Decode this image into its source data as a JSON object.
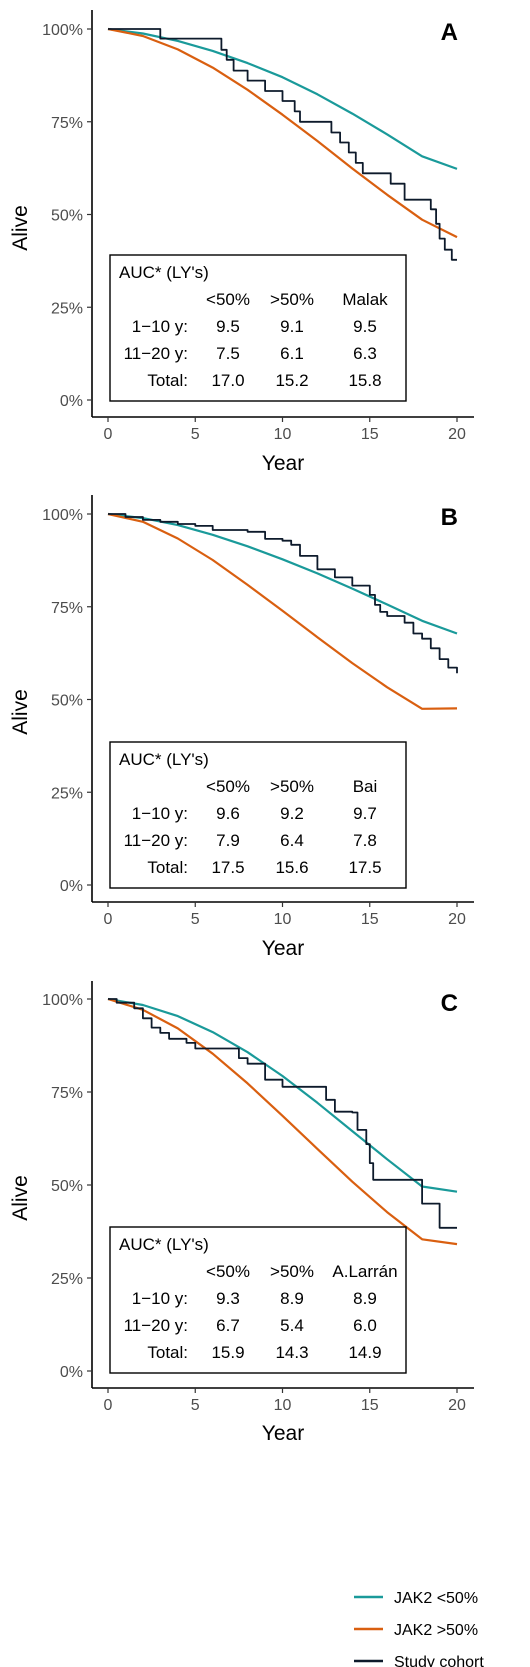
{
  "chart_data": [
    {
      "type": "line",
      "panel": "A",
      "xlabel": "Year",
      "ylabel": "Alive",
      "xlim": [
        0,
        20
      ],
      "ylim": [
        0,
        100
      ],
      "x_ticks": [
        "0",
        "5",
        "10",
        "15",
        "20"
      ],
      "y_ticks": [
        "0%",
        "25%",
        "50%",
        "75%",
        "100%"
      ],
      "series": [
        {
          "name": "JAK2 <50%",
          "x": [
            0,
            2,
            4,
            6,
            8,
            10,
            12,
            14,
            16,
            18,
            20
          ],
          "values": [
            100,
            98.8,
            96.8,
            94.1,
            90.8,
            87,
            82.4,
            77.2,
            71.6,
            65.7,
            62.3
          ]
        },
        {
          "name": "JAK2 >50%",
          "x": [
            0,
            2,
            4,
            6,
            8,
            10,
            12,
            14,
            16,
            18,
            20
          ],
          "values": [
            100,
            98.1,
            94.5,
            89.6,
            83.6,
            76.9,
            69.8,
            62.4,
            55.3,
            48.6,
            43.9
          ]
        },
        {
          "name": "Study cohort",
          "step": true,
          "x": [
            0,
            3,
            6.5,
            6.8,
            7.2,
            8,
            9,
            10,
            10.7,
            11,
            12.8,
            13.3,
            13.8,
            14.2,
            14.6,
            15,
            16.2,
            17,
            18.5,
            18.8,
            19,
            19.3,
            19.7,
            20
          ],
          "values": [
            100,
            97.4,
            94.4,
            91.7,
            88.8,
            86.1,
            83.3,
            80.6,
            77.8,
            75,
            72.1,
            69.4,
            66.7,
            63.9,
            61.1,
            61.1,
            58.3,
            54,
            51.4,
            47.5,
            43.5,
            40.5,
            37.8,
            37.8
          ]
        }
      ],
      "auc_table": {
        "title": "AUC* (LY's)",
        "columns": [
          "<50%",
          ">50%",
          "Malak"
        ],
        "rows": [
          {
            "label": "1−10 y:",
            "values": [
              "9.5",
              "9.1",
              "9.5"
            ]
          },
          {
            "label": "11−20 y:",
            "values": [
              "7.5",
              "6.1",
              "6.3"
            ]
          },
          {
            "label": "Total:",
            "values": [
              "17.0",
              "15.2",
              "15.8"
            ]
          }
        ]
      }
    },
    {
      "type": "line",
      "panel": "B",
      "xlabel": "Year",
      "ylabel": "Alive",
      "xlim": [
        0,
        20
      ],
      "ylim": [
        0,
        100
      ],
      "x_ticks": [
        "0",
        "5",
        "10",
        "15",
        "20"
      ],
      "y_ticks": [
        "0%",
        "25%",
        "50%",
        "75%",
        "100%"
      ],
      "series": [
        {
          "name": "JAK2 <50%",
          "x": [
            0,
            2,
            4,
            6,
            8,
            10,
            12,
            14,
            16,
            18,
            20
          ],
          "values": [
            100,
            98.9,
            97,
            94.4,
            91.3,
            87.8,
            84,
            79.9,
            75.6,
            71.2,
            67.8
          ]
        },
        {
          "name": "JAK2 >50%",
          "x": [
            0,
            2,
            4,
            6,
            8,
            10,
            12,
            14,
            16,
            18,
            20
          ],
          "values": [
            100,
            97.9,
            93.4,
            87.6,
            80.9,
            73.9,
            66.8,
            59.8,
            53.3,
            47.5,
            47.6
          ]
        },
        {
          "name": "Study cohort",
          "step": true,
          "x": [
            0,
            1,
            2,
            3,
            4,
            5,
            6,
            8,
            9,
            10,
            10.5,
            11,
            12,
            13,
            14,
            15,
            15.3,
            15.6,
            16,
            17,
            17.5,
            18,
            18.5,
            19,
            19.5,
            20
          ],
          "values": [
            100,
            99.2,
            98.4,
            97.9,
            97.3,
            96.8,
            95.7,
            95.2,
            93.3,
            92.8,
            91.7,
            88.7,
            85.1,
            82.9,
            80.7,
            78.2,
            75.5,
            73.6,
            72.5,
            70.7,
            67.8,
            66.4,
            63.8,
            60.9,
            58.6,
            57.1
          ]
        }
      ],
      "auc_table": {
        "title": "AUC* (LY's)",
        "columns": [
          "<50%",
          ">50%",
          "Bai"
        ],
        "rows": [
          {
            "label": "1−10 y:",
            "values": [
              "9.6",
              "9.2",
              "9.7"
            ]
          },
          {
            "label": "11−20 y:",
            "values": [
              "7.9",
              "6.4",
              "7.8"
            ]
          },
          {
            "label": "Total:",
            "values": [
              "17.5",
              "15.6",
              "17.5"
            ]
          }
        ]
      }
    },
    {
      "type": "line",
      "panel": "C",
      "xlabel": "Year",
      "ylabel": "Alive",
      "xlim": [
        0,
        20
      ],
      "ylim": [
        0,
        100
      ],
      "x_ticks": [
        "0",
        "5",
        "10",
        "15",
        "20"
      ],
      "y_ticks": [
        "0%",
        "25%",
        "50%",
        "75%",
        "100%"
      ],
      "series": [
        {
          "name": "JAK2 <50%",
          "x": [
            0,
            2,
            4,
            6,
            8,
            10,
            12,
            14,
            16,
            18,
            20
          ],
          "values": [
            100,
            98.4,
            95.4,
            91.1,
            85.7,
            79.3,
            72.1,
            64.5,
            56.9,
            49.6,
            48.2
          ]
        },
        {
          "name": "JAK2 >50%",
          "x": [
            0,
            2,
            4,
            6,
            8,
            10,
            12,
            14,
            16,
            18,
            20
          ],
          "values": [
            100,
            97.1,
            92.1,
            85.3,
            77.3,
            68.6,
            59.7,
            50.9,
            42.7,
            35.4,
            34.1
          ]
        },
        {
          "name": "Study cohort",
          "step": true,
          "x": [
            0,
            0.5,
            1.5,
            2,
            2.5,
            3,
            3.5,
            4.5,
            5,
            7.5,
            8,
            9,
            10,
            12.5,
            13,
            14,
            14.3,
            14.8,
            15,
            15.2,
            17,
            18,
            19,
            20
          ],
          "values": [
            100,
            99,
            97.5,
            94.8,
            92.3,
            90.9,
            89.3,
            88.2,
            86.7,
            84.1,
            82.6,
            78.3,
            76.4,
            72.9,
            69.7,
            69.5,
            64.8,
            61,
            55.9,
            51.4,
            51.4,
            45,
            38.5,
            38.5
          ]
        }
      ],
      "auc_table": {
        "title": "AUC* (LY's)",
        "columns": [
          "<50%",
          ">50%",
          "A.Larrán"
        ],
        "rows": [
          {
            "label": "1−10 y:",
            "values": [
              "9.3",
              "8.9",
              "8.9"
            ]
          },
          {
            "label": "11−20 y:",
            "values": [
              "6.7",
              "5.4",
              "6.0"
            ]
          },
          {
            "label": "Total:",
            "values": [
              "15.9",
              "14.3",
              "14.9"
            ]
          }
        ]
      }
    }
  ],
  "colors": {
    "JAK2 <50%": "#1a9a9a",
    "JAK2 >50%": "#d95f10",
    "Study cohort": "#0d1a2b",
    "axis": "#000000",
    "tick_label": "#4d4d4d"
  },
  "legend": {
    "position": "bottom-right",
    "items": [
      {
        "label": "JAK2 <50%",
        "color": "#1a9a9a"
      },
      {
        "label": "JAK2 >50%",
        "color": "#d95f10"
      },
      {
        "label": "Study cohort",
        "color": "#0d1a2b"
      }
    ]
  }
}
